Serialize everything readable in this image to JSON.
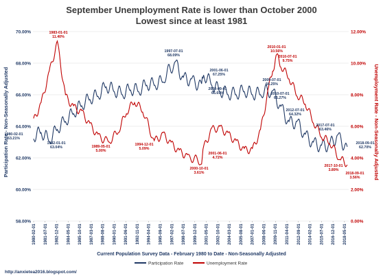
{
  "chart_data": {
    "type": "line",
    "title": "September Unemployment Rate is lower than October 2000",
    "subtitle": "Lowest since at least 1981",
    "xlabel": "Current Population Survey Data - February 1980 to Date - Non-Seasonally Adjusted",
    "ylabel_left": "Participation Rate - Non-Seasonally Adjusted",
    "ylabel_right": "Unemployment Rate - Non-Seasonally Adjusted",
    "ylim_left": [
      58,
      70
    ],
    "ylim_right": [
      0,
      12
    ],
    "left_ticks": [
      "58.00%",
      "60.00%",
      "62.00%",
      "64.00%",
      "66.00%",
      "68.00%",
      "70.00%"
    ],
    "right_ticks": [
      "0.00%",
      "2.00%",
      "4.00%",
      "6.00%",
      "8.00%",
      "10.00%",
      "12.00%"
    ],
    "x_ticks": [
      "1980-02-01",
      "1981-07-01",
      "1982-12-01",
      "1984-05-01",
      "1985-10-01",
      "1987-03-01",
      "1988-08-01",
      "1990-01-01",
      "1991-06-01",
      "1992-11-01",
      "1994-04-01",
      "1995-09-01",
      "1997-02-01",
      "1998-07-01",
      "1999-12-01",
      "2001-05-01",
      "2002-10-01",
      "2004-03-01",
      "2005-08-01",
      "2007-01-01",
      "2008-06-01",
      "2009-11-01",
      "2011-04-01",
      "2012-09-01",
      "2014-02-01",
      "2015-07-01",
      "2016-12-01",
      "2018-05-01"
    ],
    "grid": true,
    "legend_position": "bottom",
    "series": [
      {
        "name": "Participation Rate",
        "axis": "left",
        "color": "#1f3864",
        "x": [
          1980.08,
          1981.0,
          1982.0,
          1983.0,
          1984.0,
          1985.0,
          1986.0,
          1987.0,
          1988.0,
          1989.0,
          1990.0,
          1991.0,
          1992.0,
          1993.0,
          1994.0,
          1995.0,
          1996.0,
          1997.5,
          1998.5,
          1999.5,
          2000.75,
          2001.0,
          2002.0,
          2003.0,
          2004.0,
          2005.0,
          2006.0,
          2007.0,
          2008.0,
          2009.5,
          2010.5,
          2011.5,
          2012.5,
          2013.5,
          2014.5,
          2015.5,
          2016.5,
          2017.5,
          2018.67
        ],
        "y": [
          63.21,
          63.6,
          63.04,
          63.8,
          64.3,
          64.8,
          65.3,
          65.7,
          65.9,
          66.5,
          66.2,
          66.0,
          66.3,
          66.2,
          66.6,
          66.6,
          66.8,
          68.09,
          67.1,
          67.0,
          66.69,
          67.25,
          66.6,
          66.2,
          66.0,
          66.0,
          66.2,
          66.0,
          66.0,
          66.25,
          65.27,
          64.3,
          64.32,
          63.5,
          63.0,
          62.8,
          62.9,
          63.46,
          62.7
        ]
      },
      {
        "name": "Unemployment Rate",
        "axis": "right",
        "color": "#c00000",
        "x": [
          1980.08,
          1981.0,
          1982.0,
          1983.0,
          1984.0,
          1985.0,
          1986.0,
          1987.0,
          1988.0,
          1989.33,
          1990.5,
          1991.5,
          1992.5,
          1993.5,
          1994.92,
          1996.0,
          1997.0,
          1998.0,
          1999.0,
          2000.75,
          2001.0,
          2002.0,
          2003.0,
          2004.0,
          2005.0,
          2006.0,
          2007.0,
          2008.0,
          2009.0,
          2009.5,
          2010.0,
          2010.5,
          2011.5,
          2012.5,
          2013.5,
          2014.5,
          2015.5,
          2016.5,
          2017.75,
          2018.67
        ],
        "y": [
          6.5,
          7.5,
          9.5,
          11.4,
          8.0,
          7.3,
          7.0,
          6.2,
          5.5,
          5.0,
          5.6,
          6.8,
          7.5,
          6.9,
          5.09,
          5.6,
          5.0,
          4.5,
          4.2,
          3.61,
          4.72,
          5.9,
          6.0,
          5.6,
          5.1,
          4.6,
          4.6,
          5.8,
          8.5,
          9.5,
          10.56,
          9.75,
          9.0,
          7.9,
          7.4,
          6.2,
          5.3,
          4.9,
          3.89,
          3.56
        ]
      }
    ],
    "annotations": [
      {
        "label": "1980-02-01\n63.21%",
        "series": "Participation Rate"
      },
      {
        "label": "1982-01-01\n63.04%",
        "series": "Participation Rate"
      },
      {
        "label": "1997-07-01\n68.09%",
        "series": "Participation Rate"
      },
      {
        "label": "2001-06-01\n67.25%",
        "series": "Participation Rate"
      },
      {
        "label": "2000-09-01\n66.69%",
        "series": "Participation Rate"
      },
      {
        "label": "2009-07-01\n66.25%",
        "series": "Participation Rate"
      },
      {
        "label": "2010-07-01\n65.27%",
        "series": "Participation Rate"
      },
      {
        "label": "2012-07-01\n64.32%",
        "series": "Participation Rate"
      },
      {
        "label": "2017-07-01\n63.46%",
        "series": "Participation Rate"
      },
      {
        "label": "2018-09-01\n62.70%",
        "series": "Participation Rate"
      },
      {
        "label": "1983-01-01\n11.40%",
        "series": "Unemployment Rate"
      },
      {
        "label": "1989-05-01\n5.00%",
        "series": "Unemployment Rate"
      },
      {
        "label": "1994-12-01\n5.09%",
        "series": "Unemployment Rate"
      },
      {
        "label": "2000-10-01\n3.61%",
        "series": "Unemployment Rate"
      },
      {
        "label": "2001-06-01\n4.72%",
        "series": "Unemployment Rate"
      },
      {
        "label": "2010-01-01\n10.56%",
        "series": "Unemployment Rate"
      },
      {
        "label": "2010-07-01\n9.75%",
        "series": "Unemployment Rate"
      },
      {
        "label": "2017-10-01\n3.89%",
        "series": "Unemployment Rate"
      },
      {
        "label": "2018-09-01\n3.56%",
        "series": "Unemployment Rate"
      }
    ]
  },
  "footer": {
    "url": "http://anxietea2016.blogspot.com/"
  }
}
